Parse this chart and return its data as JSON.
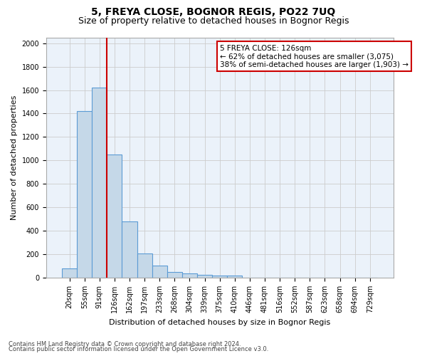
{
  "title1": "5, FREYA CLOSE, BOGNOR REGIS, PO22 7UQ",
  "title2": "Size of property relative to detached houses in Bognor Regis",
  "xlabel": "Distribution of detached houses by size in Bognor Regis",
  "ylabel": "Number of detached properties",
  "categories": [
    "20sqm",
    "55sqm",
    "91sqm",
    "126sqm",
    "162sqm",
    "197sqm",
    "233sqm",
    "268sqm",
    "304sqm",
    "339sqm",
    "375sqm",
    "410sqm",
    "446sqm",
    "481sqm",
    "516sqm",
    "552sqm",
    "587sqm",
    "623sqm",
    "658sqm",
    "694sqm",
    "729sqm"
  ],
  "values": [
    80,
    1420,
    1620,
    1050,
    480,
    205,
    105,
    48,
    35,
    25,
    20,
    15,
    0,
    0,
    0,
    0,
    0,
    0,
    0,
    0,
    0
  ],
  "bar_color": "#C5D8E8",
  "bar_edgecolor": "#5B9BD5",
  "bar_linewidth": 0.8,
  "vline_color": "#CC0000",
  "vline_x_index": 3,
  "annotation_text": "5 FREYA CLOSE: 126sqm\n← 62% of detached houses are smaller (3,075)\n38% of semi-detached houses are larger (1,903) →",
  "annotation_box_color": "#CC0000",
  "ylim": [
    0,
    2050
  ],
  "yticks": [
    0,
    200,
    400,
    600,
    800,
    1000,
    1200,
    1400,
    1600,
    1800,
    2000
  ],
  "footer1": "Contains HM Land Registry data © Crown copyright and database right 2024.",
  "footer2": "Contains public sector information licensed under the Open Government Licence v3.0.",
  "title1_fontsize": 10,
  "title2_fontsize": 9,
  "axis_label_fontsize": 8,
  "tick_fontsize": 7,
  "annotation_fontsize": 7.5,
  "footer_fontsize": 6,
  "grid_color": "#CCCCCC",
  "background_color": "#FFFFFF",
  "plot_bg_color": "#EBF2FA"
}
